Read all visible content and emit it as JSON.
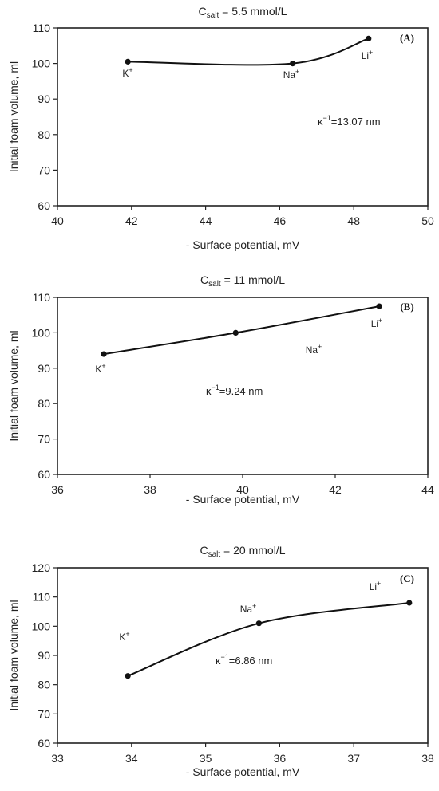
{
  "colors": {
    "line": "#111111",
    "axis": "#222222",
    "background": "#ffffff"
  },
  "chart_data": [
    {
      "type": "line",
      "title_main": "C",
      "title_sub": "salt",
      "title_rest": " = 5.5 mmol/L",
      "panel_label": "(A)",
      "xlabel": "- Surface potential, mV",
      "ylabel": "Initial foam volume, ml",
      "xlim": [
        40,
        50
      ],
      "ylim": [
        60,
        110
      ],
      "xticks": [
        40,
        42,
        44,
        46,
        48,
        50
      ],
      "yticks": [
        60,
        70,
        80,
        90,
        100,
        110
      ],
      "annotation": {
        "main": "κ",
        "sup": "−1",
        "rest": "=13.07 nm"
      },
      "points": [
        {
          "ion": "K",
          "charge": "+",
          "x": 41.9,
          "y": 100.5
        },
        {
          "ion": "Na",
          "charge": "+",
          "x": 46.35,
          "y": 100.0
        },
        {
          "ion": "Li",
          "charge": "+",
          "x": 48.4,
          "y": 107.0
        }
      ]
    },
    {
      "type": "line",
      "title_main": "C",
      "title_sub": "salt",
      "title_rest": " = 11 mmol/L",
      "panel_label": "(B)",
      "xlabel": "- Surface potential, mV",
      "ylabel": "Initial foam volume, ml",
      "xlim": [
        36,
        44
      ],
      "ylim": [
        60,
        110
      ],
      "xticks": [
        36,
        38,
        40,
        42,
        44
      ],
      "yticks": [
        60,
        70,
        80,
        90,
        100,
        110
      ],
      "annotation": {
        "main": "κ",
        "sup": "−1",
        "rest": "=9.24 nm"
      },
      "points": [
        {
          "ion": "K",
          "charge": "+",
          "x": 37.0,
          "y": 94.0
        },
        {
          "ion": "Na",
          "charge": "+",
          "x": 39.85,
          "y": 100.0
        },
        {
          "ion": "Li",
          "charge": "+",
          "x": 42.95,
          "y": 107.5
        }
      ]
    },
    {
      "type": "line",
      "title_main": "C",
      "title_sub": "salt",
      "title_rest": " = 20 mmol/L",
      "panel_label": "(C)",
      "xlabel": "- Surface potential, mV",
      "ylabel": "Initial foam volume, ml",
      "xlim": [
        33,
        38
      ],
      "ylim": [
        60,
        120
      ],
      "xticks": [
        33,
        34,
        35,
        36,
        37,
        38
      ],
      "yticks": [
        60,
        70,
        80,
        90,
        100,
        110,
        120
      ],
      "annotation": {
        "main": "κ",
        "sup": "−1",
        "rest": "=6.86 nm"
      },
      "points": [
        {
          "ion": "K",
          "charge": "+",
          "x": 33.95,
          "y": 83.0
        },
        {
          "ion": "Na",
          "charge": "+",
          "x": 35.72,
          "y": 101.0
        },
        {
          "ion": "Li",
          "charge": "+",
          "x": 37.75,
          "y": 108.0
        }
      ]
    }
  ]
}
